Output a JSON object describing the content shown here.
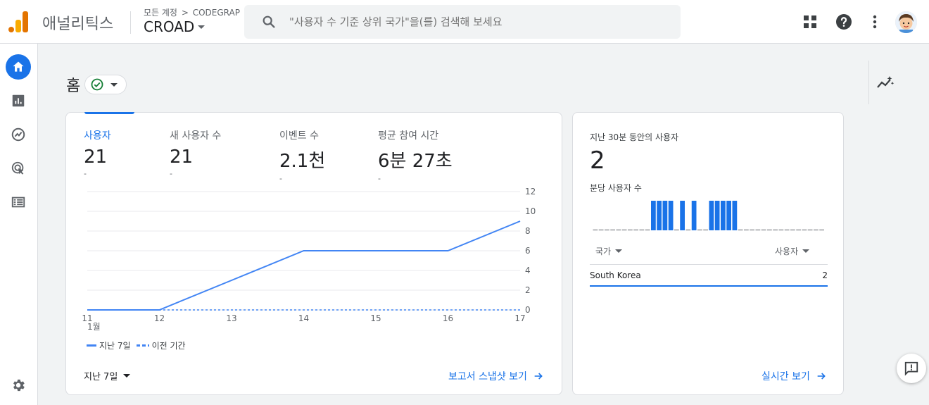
{
  "app": {
    "title": "애널리틱스"
  },
  "breadcrumb": {
    "root": "모든 계정",
    "separator": ">",
    "account": "CODEGRAP"
  },
  "property": {
    "name": "CROAD"
  },
  "search": {
    "placeholder": "\"사용자 수 기준 상위 국가\"을(를) 검색해 보세요"
  },
  "top_icons": [
    "apps-grid-icon",
    "help-icon",
    "more-vert-icon",
    "avatar"
  ],
  "nav": [
    {
      "name": "home-icon",
      "active": true
    },
    {
      "name": "reports-icon",
      "active": false
    },
    {
      "name": "explore-icon",
      "active": false
    },
    {
      "name": "advertising-icon",
      "active": false
    },
    {
      "name": "configure-icon",
      "active": false
    },
    {
      "name": "settings-icon",
      "active": false
    }
  ],
  "page": {
    "title": "홈"
  },
  "metrics": [
    {
      "label": "사용자",
      "value": "21",
      "delta": "-",
      "active": true
    },
    {
      "label": "새 사용자 수",
      "value": "21",
      "delta": "-",
      "active": false
    },
    {
      "label": "이벤트 수",
      "value": "2.1천",
      "delta": "-",
      "active": false
    },
    {
      "label": "평균 참여 시간",
      "value": "6분 27초",
      "delta": "-",
      "active": false
    }
  ],
  "chart_data": {
    "type": "line",
    "x": [
      "11",
      "12",
      "13",
      "14",
      "15",
      "16",
      "17"
    ],
    "x_month_label": "1월",
    "y_ticks": [
      "12",
      "10",
      "8",
      "6",
      "4",
      "2",
      "0"
    ],
    "ylim": [
      0,
      12
    ],
    "series": [
      {
        "name": "지난 7일",
        "values": [
          0,
          0,
          3,
          6,
          6,
          6,
          9
        ],
        "style": "solid",
        "color": "#4285f4"
      },
      {
        "name": "이전 기간",
        "values": [
          0,
          0,
          0,
          0,
          0,
          0,
          0
        ],
        "style": "dashed",
        "color": "#4285f4"
      }
    ],
    "grid": true,
    "legend_position": "bottom-left"
  },
  "legend": {
    "current": "지난 7일",
    "previous": "이전 기간"
  },
  "period": {
    "label": "지난 7일"
  },
  "main_card_link": {
    "label": "보고서 스냅샷 보기"
  },
  "realtime": {
    "title": "지난 30분 동안의 사용자",
    "value": "2",
    "subtitle": "분당 사용자 수",
    "bars": [
      0,
      0,
      0,
      0,
      0,
      0,
      0,
      0,
      0,
      0,
      1,
      1,
      1,
      1,
      0,
      1,
      0,
      1,
      0,
      0,
      1,
      1,
      1,
      1,
      1,
      0,
      0,
      0,
      0,
      0,
      0,
      0,
      0,
      0,
      0,
      0,
      0,
      0,
      0,
      0
    ],
    "col_country": "국가",
    "col_users": "사용자",
    "rows": [
      {
        "country": "South Korea",
        "users": "2"
      }
    ],
    "link": "실시간 보기"
  },
  "colors": {
    "accent": "#1a73e8",
    "logo_orange": "#f9ab00",
    "logo_dark": "#e37400"
  }
}
